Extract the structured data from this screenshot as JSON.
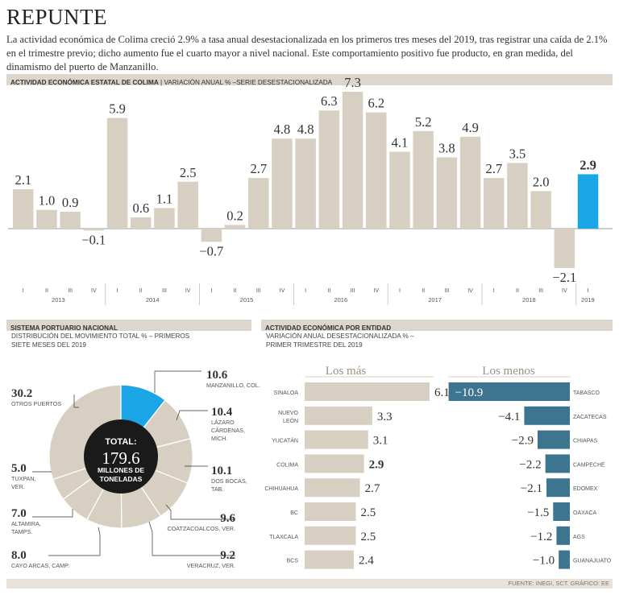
{
  "title": "REPUNTE",
  "lede": "La actividad económica de Colima creció 2.9% a tasa anual desestacionalizada en los primeros tres meses del 2019, tras registrar una caída de 2.1% en el trimestre previo; dicho aumento fue el cuarto mayor a nivel nacional. Este comportamiento positivo fue producto, en gran medida, del dinamismo del puerto de Manzanillo.",
  "section1": {
    "title": "ACTIVIDAD ECONÓMICA ESTATAL DE COLIMA",
    "subtitle": "| VARIACIÓN ANUAL % –SERIE DESESTACIONALIZADA"
  },
  "section2": {
    "title": "SISTEMA PORTUARIO NACIONAL",
    "subtitle1": "DISTRIBUCIÓN DEL MOVIMIENTO TOTAL % – PRIMEROS",
    "subtitle2": "SIETE MESES DEL 2019"
  },
  "section3": {
    "title": "ACTIVIDAD ECONÓMICA POR ENTIDAD",
    "subtitle1": "VARIACIÓN ANUAL DESESTACIONALIZADA % –",
    "subtitle2": "PRIMER TRIMESTRE DEL 2019"
  },
  "footer": "FUENTE: INEGI, SCT.  GRÁFICO: EE",
  "colors": {
    "bar": "#d8cfc3",
    "highlight": "#1aa6e6",
    "dark": "#1a1a1a",
    "teal": "#3d7590"
  },
  "chart_data": [
    {
      "type": "bar",
      "title": "ACTIVIDAD ECONÓMICA ESTATAL DE COLIMA",
      "subtitle": "VARIACIÓN ANUAL % –SERIE DESESTACIONALIZADA",
      "quarters": [
        "I",
        "II",
        "III",
        "IV",
        "I",
        "II",
        "III",
        "IV",
        "I",
        "II",
        "III",
        "IV",
        "I",
        "II",
        "III",
        "IV",
        "I",
        "II",
        "III",
        "IV",
        "I",
        "II",
        "III",
        "IV",
        "I"
      ],
      "years": [
        {
          "label": "2013",
          "count": 4
        },
        {
          "label": "2014",
          "count": 4
        },
        {
          "label": "2015",
          "count": 4
        },
        {
          "label": "2016",
          "count": 4
        },
        {
          "label": "2017",
          "count": 4
        },
        {
          "label": "2018",
          "count": 4
        },
        {
          "label": "2019",
          "count": 1
        }
      ],
      "values": [
        2.1,
        1.0,
        0.9,
        -0.1,
        5.9,
        0.6,
        1.1,
        2.5,
        -0.7,
        0.2,
        2.7,
        4.8,
        4.8,
        6.3,
        7.3,
        6.2,
        4.1,
        5.2,
        3.8,
        4.9,
        2.7,
        3.5,
        2.0,
        -2.1,
        2.9
      ],
      "value_labels": [
        "2.1",
        "1.0",
        "0.9",
        "−0.1",
        "5.9",
        "0.6",
        "1.1",
        "2.5",
        "−0.7",
        "0.2",
        "2.7",
        "4.8",
        "4.8",
        "6.3",
        "7.3",
        "6.2",
        "4.1",
        "5.2",
        "3.8",
        "4.9",
        "2.7",
        "3.5",
        "2.0",
        "−2.1",
        "2.9"
      ],
      "highlight_index": 24,
      "ylim": [
        -2.5,
        8
      ]
    },
    {
      "type": "pie",
      "title": "SISTEMA PORTUARIO NACIONAL",
      "center_title": "TOTAL:",
      "center_value": "179.6",
      "center_unit1": "MILLONES DE",
      "center_unit2": "TONELADAS",
      "slices": [
        {
          "name": "MANZANILLO, COL.",
          "lines": [
            "MANZANILLO, COL."
          ],
          "value": 10.6,
          "label": "10.6",
          "highlight": true
        },
        {
          "name": "LÁZARO CÁRDENAS, MICH.",
          "lines": [
            "LÁZARO",
            "CÁRDENAS,",
            "MICH."
          ],
          "value": 10.4,
          "label": "10.4"
        },
        {
          "name": "DOS BOCAS, TAB.",
          "lines": [
            "DOS BOCAS,",
            "TAB."
          ],
          "value": 10.1,
          "label": "10.1"
        },
        {
          "name": "COATZACOALCOS, VER.",
          "lines": [
            "COATZACOALCOS, VER."
          ],
          "value": 9.6,
          "label": "9.6"
        },
        {
          "name": "VERACRUZ, VER.",
          "lines": [
            "VERACRUZ, VER."
          ],
          "value": 9.2,
          "label": "9.2"
        },
        {
          "name": "CAYO ARCAS, CAMP.",
          "lines": [
            "CAYO ARCAS, CAMP."
          ],
          "value": 8.0,
          "label": "8.0"
        },
        {
          "name": "ALTAMIRA, TAMPS.",
          "lines": [
            "ALTAMIRA,",
            "TAMPS."
          ],
          "value": 7.0,
          "label": "7.0"
        },
        {
          "name": "TUXPAN, VER.",
          "lines": [
            "TUXPAN,",
            "VER."
          ],
          "value": 5.0,
          "label": "5.0"
        },
        {
          "name": "OTROS PUERTOS",
          "lines": [
            "OTROS PUERTOS"
          ],
          "value": 30.2,
          "label": "30.2"
        }
      ]
    },
    {
      "type": "bar",
      "title": "ACTIVIDAD ECONÓMICA POR ENTIDAD",
      "header_top": "Los más",
      "header_bottom": "Los menos",
      "top": [
        {
          "name": "SINALOA",
          "lines": [
            "SINALOA"
          ],
          "value": 6.1,
          "label": "6.1"
        },
        {
          "name": "NUEVO LEÓN",
          "lines": [
            "NUEVO",
            "LEÓN"
          ],
          "value": 3.3,
          "label": "3.3"
        },
        {
          "name": "YUCATÁN",
          "lines": [
            "YUCATÁN"
          ],
          "value": 3.1,
          "label": "3.1"
        },
        {
          "name": "COLIMA",
          "lines": [
            "COLIMA"
          ],
          "value": 2.9,
          "label": "2.9",
          "bold": true
        },
        {
          "name": "CHIHUAHUA",
          "lines": [
            "CHIHUAHUA"
          ],
          "value": 2.7,
          "label": "2.7"
        },
        {
          "name": "BC",
          "lines": [
            "BC"
          ],
          "value": 2.5,
          "label": "2.5"
        },
        {
          "name": "TLAXCALA",
          "lines": [
            "TLAXCALA"
          ],
          "value": 2.5,
          "label": "2.5"
        },
        {
          "name": "BCS",
          "lines": [
            "BCS"
          ],
          "value": 2.4,
          "label": "2.4"
        }
      ],
      "bottom": [
        {
          "name": "TABASCO",
          "value": -10.9,
          "label": "−10.9"
        },
        {
          "name": "ZACATECAS",
          "value": -4.1,
          "label": "−4.1"
        },
        {
          "name": "CHIAPAS",
          "value": -2.9,
          "label": "−2.9"
        },
        {
          "name": "CAMPECHE",
          "value": -2.2,
          "label": "−2.2"
        },
        {
          "name": "EDOMEX",
          "value": -2.1,
          "label": "−2.1"
        },
        {
          "name": "OAXACA",
          "value": -1.5,
          "label": "−1.5"
        },
        {
          "name": "AGS",
          "value": -1.2,
          "label": "−1.2"
        },
        {
          "name": "GUANAJUATO",
          "value": -1.0,
          "label": "−1.0"
        }
      ]
    }
  ]
}
